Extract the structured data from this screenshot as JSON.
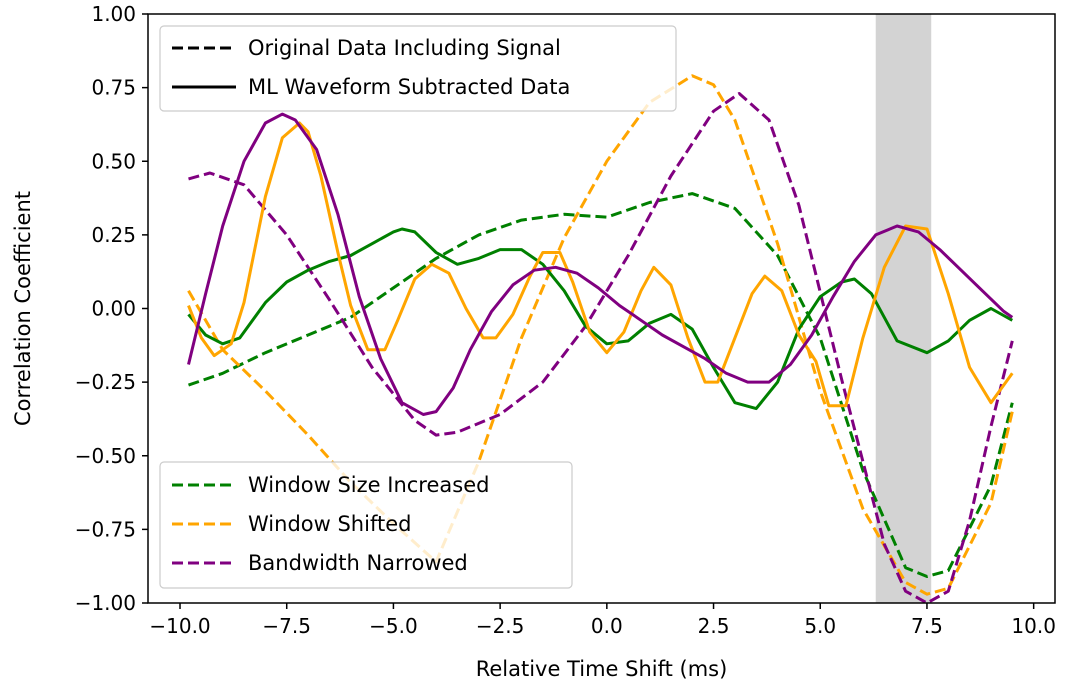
{
  "chart_data": {
    "type": "line",
    "xlabel": "Relative Time Shift (ms)",
    "ylabel": "Correlation Coefficient",
    "xlim": [
      -10.75,
      10.5
    ],
    "ylim": [
      -1.0,
      1.0
    ],
    "xticks": [
      -10.0,
      -7.5,
      -5.0,
      -2.5,
      0.0,
      2.5,
      5.0,
      7.5,
      10.0
    ],
    "xtick_labels": [
      "−10.0",
      "−7.5",
      "−5.0",
      "−2.5",
      "0.0",
      "2.5",
      "5.0",
      "7.5",
      "10.0"
    ],
    "yticks": [
      -1.0,
      -0.75,
      -0.5,
      -0.25,
      0.0,
      0.25,
      0.5,
      0.75,
      1.0
    ],
    "ytick_labels": [
      "−1.00",
      "−0.75",
      "−0.50",
      "−0.25",
      "0.00",
      "0.25",
      "0.50",
      "0.75",
      "1.00"
    ],
    "grid": false,
    "shaded_region": {
      "x": [
        6.3,
        7.6
      ],
      "color": "#d3d3d3"
    },
    "legend_style": {
      "placement": "top-left",
      "entries": [
        {
          "label": "Original Data Including Signal",
          "style": "dashed"
        },
        {
          "label": "ML Waveform Subtracted Data",
          "style": "solid"
        }
      ]
    },
    "legend_color": {
      "placement": "bottom-left",
      "entries": [
        {
          "label": "Window Size Increased",
          "color": "#008000",
          "style": "dashed"
        },
        {
          "label": "Window Shifted",
          "color": "#ffa500",
          "style": "dashed"
        },
        {
          "label": "Bandwidth Narrowed",
          "color": "#800080",
          "style": "dashed"
        }
      ]
    },
    "series": [
      {
        "color": "#008000",
        "style": "dashed",
        "x": [
          -9.8,
          -9.0,
          -8.0,
          -7.0,
          -6.0,
          -5.0,
          -4.0,
          -3.0,
          -2.0,
          -1.0,
          0.0,
          1.0,
          2.0,
          3.0,
          4.0,
          5.0,
          6.0,
          7.0,
          7.5,
          8.0,
          9.0,
          9.5
        ],
        "y": [
          -0.26,
          -0.22,
          -0.15,
          -0.09,
          -0.03,
          0.07,
          0.17,
          0.25,
          0.3,
          0.32,
          0.31,
          0.36,
          0.39,
          0.34,
          0.18,
          -0.1,
          -0.55,
          -0.88,
          -0.91,
          -0.89,
          -0.6,
          -0.32
        ]
      },
      {
        "color": "#ffa500",
        "style": "dashed",
        "x": [
          -9.8,
          -9.0,
          -8.0,
          -7.0,
          -6.0,
          -5.0,
          -4.0,
          -3.0,
          -2.0,
          -1.0,
          0.0,
          1.0,
          2.0,
          2.5,
          3.0,
          4.0,
          5.0,
          6.0,
          7.0,
          7.5,
          8.0,
          9.0,
          9.5
        ],
        "y": [
          0.06,
          -0.14,
          -0.28,
          -0.43,
          -0.59,
          -0.73,
          -0.86,
          -0.52,
          -0.1,
          0.24,
          0.5,
          0.7,
          0.79,
          0.76,
          0.64,
          0.22,
          -0.28,
          -0.68,
          -0.93,
          -0.97,
          -0.95,
          -0.66,
          -0.35
        ]
      },
      {
        "color": "#800080",
        "style": "dashed",
        "x": [
          -9.8,
          -9.3,
          -8.5,
          -7.5,
          -6.5,
          -5.5,
          -4.5,
          -4.0,
          -3.5,
          -2.5,
          -1.5,
          -0.5,
          0.5,
          1.5,
          2.5,
          3.1,
          3.8,
          4.5,
          5.5,
          6.5,
          7.0,
          7.5,
          8.0,
          8.5,
          9.0,
          9.5
        ],
        "y": [
          0.44,
          0.46,
          0.42,
          0.25,
          0.03,
          -0.2,
          -0.38,
          -0.43,
          -0.42,
          -0.36,
          -0.25,
          -0.06,
          0.18,
          0.45,
          0.67,
          0.73,
          0.64,
          0.35,
          -0.24,
          -0.8,
          -0.96,
          -1.0,
          -0.96,
          -0.72,
          -0.4,
          -0.11
        ]
      },
      {
        "color": "#008000",
        "style": "solid",
        "x": [
          -9.8,
          -9.4,
          -9.0,
          -8.6,
          -8.0,
          -7.5,
          -7.0,
          -6.5,
          -6.0,
          -5.5,
          -5.0,
          -4.8,
          -4.5,
          -4.0,
          -3.5,
          -3.0,
          -2.5,
          -2.0,
          -1.5,
          -1.0,
          -0.5,
          0.0,
          0.5,
          1.0,
          1.5,
          2.0,
          2.5,
          3.0,
          3.5,
          4.0,
          4.5,
          5.0,
          5.5,
          5.8,
          6.2,
          6.8,
          7.5,
          8.0,
          8.5,
          9.0,
          9.5
        ],
        "y": [
          -0.02,
          -0.09,
          -0.12,
          -0.1,
          0.02,
          0.09,
          0.13,
          0.16,
          0.18,
          0.22,
          0.26,
          0.27,
          0.26,
          0.19,
          0.15,
          0.17,
          0.2,
          0.2,
          0.15,
          0.06,
          -0.06,
          -0.12,
          -0.11,
          -0.05,
          -0.02,
          -0.07,
          -0.2,
          -0.32,
          -0.34,
          -0.25,
          -0.07,
          0.04,
          0.09,
          0.1,
          0.05,
          -0.11,
          -0.15,
          -0.11,
          -0.04,
          0.0,
          -0.04
        ]
      },
      {
        "color": "#ffa500",
        "style": "solid",
        "x": [
          -9.8,
          -9.5,
          -9.2,
          -8.8,
          -8.5,
          -8.0,
          -7.6,
          -7.2,
          -7.0,
          -6.7,
          -6.3,
          -6.0,
          -5.6,
          -5.2,
          -4.9,
          -4.5,
          -4.1,
          -3.7,
          -3.3,
          -2.9,
          -2.6,
          -2.2,
          -1.8,
          -1.5,
          -1.1,
          -0.8,
          -0.4,
          0.0,
          0.4,
          0.8,
          1.1,
          1.5,
          1.9,
          2.3,
          2.6,
          3.0,
          3.4,
          3.7,
          4.1,
          4.5,
          4.9,
          5.2,
          5.6,
          6.0,
          6.5,
          7.0,
          7.5,
          8.0,
          8.5,
          9.0,
          9.5
        ],
        "y": [
          0.01,
          -0.1,
          -0.16,
          -0.12,
          0.02,
          0.38,
          0.58,
          0.63,
          0.6,
          0.45,
          0.19,
          0.01,
          -0.14,
          -0.14,
          -0.04,
          0.1,
          0.15,
          0.12,
          0.0,
          -0.1,
          -0.1,
          -0.02,
          0.11,
          0.19,
          0.19,
          0.09,
          -0.08,
          -0.15,
          -0.08,
          0.06,
          0.14,
          0.08,
          -0.1,
          -0.25,
          -0.25,
          -0.1,
          0.05,
          0.11,
          0.06,
          -0.09,
          -0.18,
          -0.33,
          -0.33,
          -0.1,
          0.14,
          0.28,
          0.27,
          0.05,
          -0.2,
          -0.32,
          -0.22
        ]
      },
      {
        "color": "#800080",
        "style": "solid",
        "x": [
          -9.8,
          -9.4,
          -9.0,
          -8.5,
          -8.0,
          -7.6,
          -7.3,
          -6.8,
          -6.3,
          -5.8,
          -5.3,
          -4.8,
          -4.3,
          -4.0,
          -3.6,
          -3.2,
          -2.7,
          -2.2,
          -1.7,
          -1.2,
          -0.7,
          -0.2,
          0.3,
          0.8,
          1.3,
          1.8,
          2.3,
          2.8,
          3.3,
          3.8,
          4.3,
          4.8,
          5.3,
          5.8,
          6.3,
          6.8,
          7.3,
          7.8,
          8.3,
          8.8,
          9.3,
          9.5
        ],
        "y": [
          -0.19,
          0.05,
          0.28,
          0.5,
          0.63,
          0.66,
          0.64,
          0.54,
          0.32,
          0.04,
          -0.17,
          -0.32,
          -0.36,
          -0.35,
          -0.27,
          -0.14,
          -0.01,
          0.08,
          0.13,
          0.14,
          0.12,
          0.07,
          0.01,
          -0.04,
          -0.09,
          -0.13,
          -0.17,
          -0.22,
          -0.25,
          -0.25,
          -0.19,
          -0.09,
          0.04,
          0.16,
          0.25,
          0.28,
          0.26,
          0.2,
          0.13,
          0.06,
          -0.01,
          -0.03
        ]
      }
    ]
  }
}
